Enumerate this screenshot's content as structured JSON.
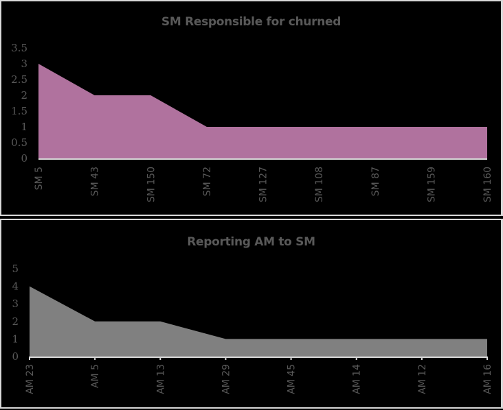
{
  "chart_data": [
    {
      "type": "area",
      "title": "SM Responsible for churned",
      "xlabel": "",
      "ylabel": "",
      "categories": [
        "SM 5",
        "SM 43",
        "SM 150",
        "SM 72",
        "SM 127",
        "SM 108",
        "SM 87",
        "SM 159",
        "SM 160"
      ],
      "values": [
        3,
        2,
        2,
        1,
        1,
        1,
        1,
        1,
        1
      ],
      "yticks": [
        "0",
        "0.5",
        "1",
        "1.5",
        "2",
        "2.5",
        "3",
        "3.5"
      ],
      "ylim": [
        0,
        3.5
      ],
      "grid": false,
      "legend": null,
      "fill_color": "#B0729E"
    },
    {
      "type": "area",
      "title": "Reporting AM to SM",
      "xlabel": "",
      "ylabel": "",
      "categories": [
        "AM 23",
        "AM 5",
        "AM 13",
        "AM 29",
        "AM 45",
        "AM 14",
        "AM 12",
        "AM 16"
      ],
      "values": [
        4,
        2,
        2,
        1,
        1,
        1,
        1,
        1
      ],
      "yticks": [
        "0",
        "1",
        "2",
        "3",
        "4",
        "5"
      ],
      "ylim": [
        0,
        5
      ],
      "grid": false,
      "legend": null,
      "fill_color": "#808080"
    }
  ],
  "colors": {
    "background": "#000000",
    "border": "#D9D9D9",
    "text": "#595959",
    "axis_line": "#D9D9D9"
  }
}
